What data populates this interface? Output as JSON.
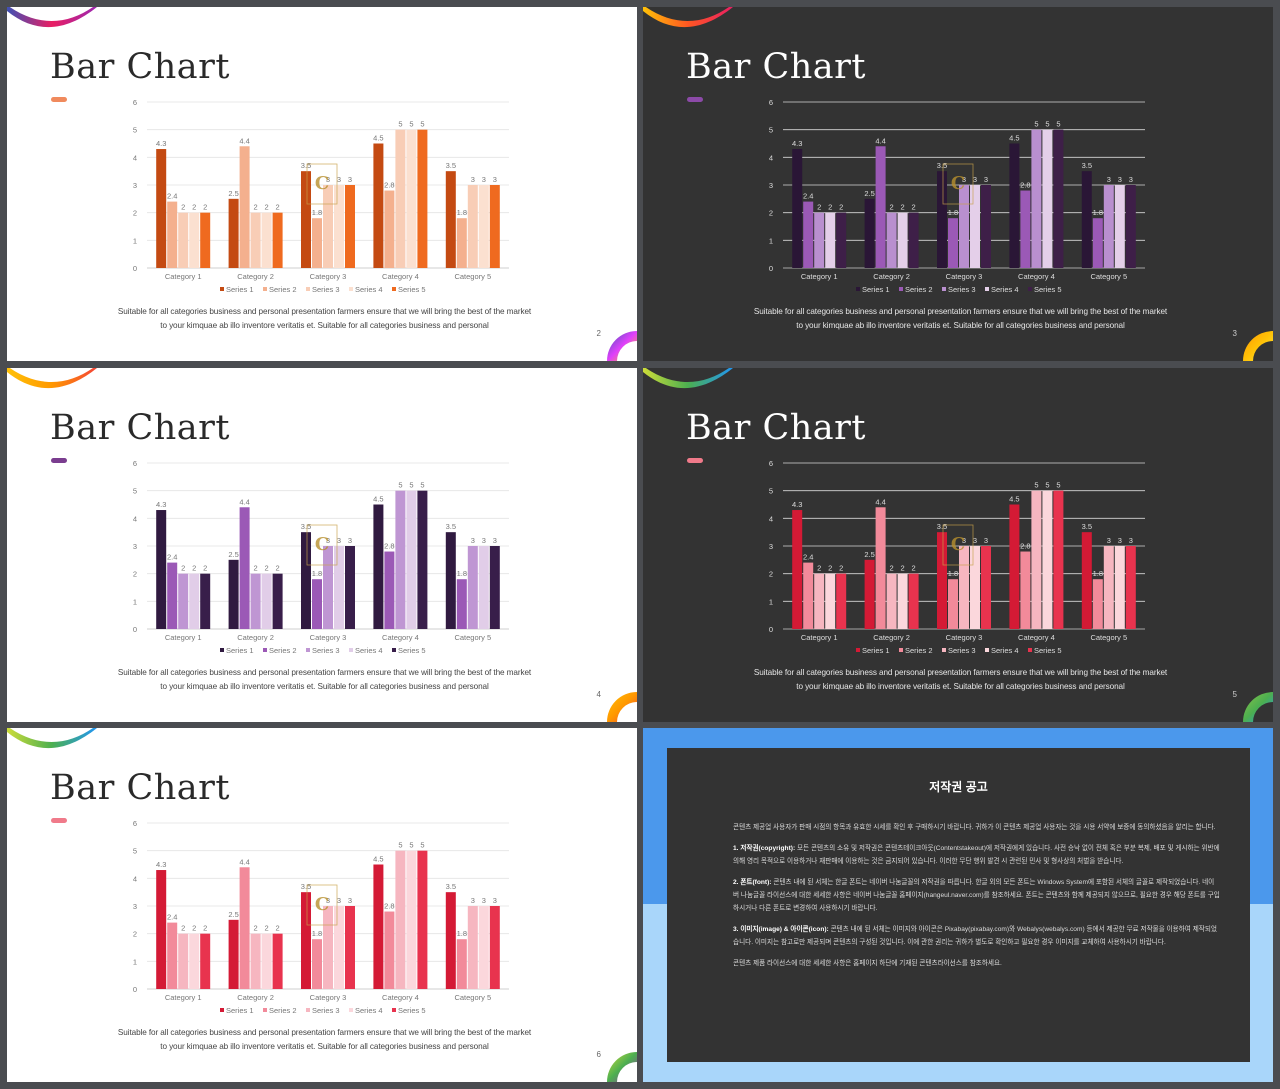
{
  "slides": [
    {
      "number": "2",
      "theme": "light",
      "accent": "#f08a5d",
      "colors": [
        "#c44a12",
        "#f4b08e",
        "#f8cdb6",
        "#fbe0d0",
        "#ef6a1f"
      ],
      "label_color": "#777777",
      "axis_text_color": "#777777",
      "grid_color": "#e3e3e3",
      "ribbon": [
        "#3f51b5",
        "#e91e63",
        "#9c27b0"
      ],
      "ring": [
        "#3f51b5",
        "#e040fb",
        "#ffc107"
      ]
    },
    {
      "number": "3",
      "theme": "dark",
      "accent": "#8c4aa8",
      "colors": [
        "#2a1636",
        "#9b59b6",
        "#b98fcf",
        "#e4cfe9",
        "#3e1f48"
      ],
      "label_color": "#dddddd",
      "axis_text_color": "#dddddd",
      "grid_color": "#d8d8d8",
      "ribbon": [
        "#ffc107",
        "#ff5722",
        "#e91e63"
      ],
      "ring": [
        "#ff9800",
        "#ffc107",
        "#ffeb3b"
      ]
    },
    {
      "number": "4",
      "theme": "light",
      "accent": "#7a3d8f",
      "colors": [
        "#301a40",
        "#9b59b6",
        "#bf96d3",
        "#e1cde8",
        "#381e4a"
      ],
      "label_color": "#777777",
      "axis_text_color": "#777777",
      "grid_color": "#e3e3e3",
      "ribbon": [
        "#ffc107",
        "#ff9800",
        "#f44336"
      ],
      "ring": [
        "#ffc107",
        "#ff9800",
        "#f44336"
      ]
    },
    {
      "number": "5",
      "theme": "dark",
      "accent": "#f07a8a",
      "colors": [
        "#d41a35",
        "#f28a9a",
        "#f6b6c0",
        "#fbd7dc",
        "#e8334e"
      ],
      "label_color": "#dddddd",
      "axis_text_color": "#dddddd",
      "grid_color": "#d8d8d8",
      "ribbon": [
        "#cddc39",
        "#4caf50",
        "#2196f3"
      ],
      "ring": [
        "#8bc34a",
        "#4caf50",
        "#2196f3"
      ]
    },
    {
      "number": "6",
      "theme": "light",
      "accent": "#f07a8a",
      "colors": [
        "#d41a35",
        "#f28a9a",
        "#f6b6c0",
        "#fbd7dc",
        "#e8334e"
      ],
      "label_color": "#777777",
      "axis_text_color": "#777777",
      "grid_color": "#e3e3e3",
      "ribbon": [
        "#cddc39",
        "#4caf50",
        "#2196f3"
      ],
      "ring": [
        "#cddc39",
        "#4caf50",
        "#9c27b0"
      ]
    }
  ],
  "slide_title": "Bar Chart",
  "caption": "Suitable for all categories business and personal presentation farmers ensure that we will bring the best of the market to your kimquae ab illo inventore veritatis et. Suitable for all categories business and personal",
  "chart_data": {
    "type": "bar",
    "categories": [
      "Category 1",
      "Category 2",
      "Category 3",
      "Category 4",
      "Category 5"
    ],
    "series": [
      {
        "name": "Series 1",
        "values": [
          4.3,
          2.5,
          3.5,
          4.5,
          3.5
        ]
      },
      {
        "name": "Series 2",
        "values": [
          2.4,
          4.4,
          1.8,
          2.8,
          1.8
        ]
      },
      {
        "name": "Series 3",
        "values": [
          2,
          2,
          3,
          5,
          3
        ]
      },
      {
        "name": "Series 4",
        "values": [
          2,
          2,
          3,
          5,
          3
        ]
      },
      {
        "name": "Series 5",
        "values": [
          2,
          2,
          3,
          5,
          3
        ]
      }
    ],
    "ylim": [
      0,
      6
    ],
    "yticks": [
      0,
      1,
      2,
      3,
      4,
      5,
      6
    ],
    "grid": true,
    "legend": "bottom"
  },
  "copyright": {
    "heading": "저작권 공고",
    "paragraphs": [
      {
        "bold": "",
        "text": "콘텐츠 제공업 사용자가 판매 시점의 항목과 유효한 시세를 확인 후 구매하시기 바랍니다. 귀하가 이 콘텐츠 제공업 사용자는 것을 시용 서약에 보증에 동의하셨음을 알리는 합니다."
      },
      {
        "bold": "1. 저작권(copyright):",
        "text": " 모든 콘텐츠의 소유 및 저작권은 콘텐츠테이크아웃(Contentstakeout)에 저작권에게 있습니다. 사전 승낙 없이 전체 혹은 부분 복제, 배포 및 게시하는 위반에 의해 영리 목적으로 이용하거나 재판매에 이용하는 것은 금지되어 있습니다. 이러한 무단 행위 발견 시 관련된 민사 및 형사상의 처벌을 받습니다."
      },
      {
        "bold": "2. 폰트(font):",
        "text": " 콘텐츠 내에 된 서체는 한글 폰트는 네이버 나눔글꼴의 저작권을 따릅니다. 한글 외의 모든 폰트는 Windows System에 포함된 서체의 글꼴로 제작되었습니다. 네이버 나눔글꼴 라이선스에 대한 세세한 사항은 네이버 나눔글꼴 홈페이지(hangeul.naver.com)를 참조하세요. 폰트는 콘텐츠와 함께 제공되지 않으므로, 필요한 경우 해당 폰트를 구입하시거나 다른 폰트로 변경하여 사용하시기 바랍니다."
      },
      {
        "bold": "3. 이미지(image) & 아이콘(icon):",
        "text": " 콘텐츠 내에 된 서체는 이미지와 아이콘은 Pixabay(pixabay.com)와 Webalys(webalys.com) 등에서 제공한 무료 저작물을 이용하여 제작되었습니다. 이미지는 참고로만 제공되며 콘텐츠의 구성된 것입니다. 이에 관한 권리는 귀하가 별도로 확인하고 필요한 경우 이미지를 교체하여 사용하시기 바랍니다."
      },
      {
        "bold": "",
        "text": "콘텐츠 제품 라이선스에 대한 세세한 사항은 홈페이지 하단에 기재된 콘텐츠라이선스를 참조하세요."
      }
    ]
  }
}
